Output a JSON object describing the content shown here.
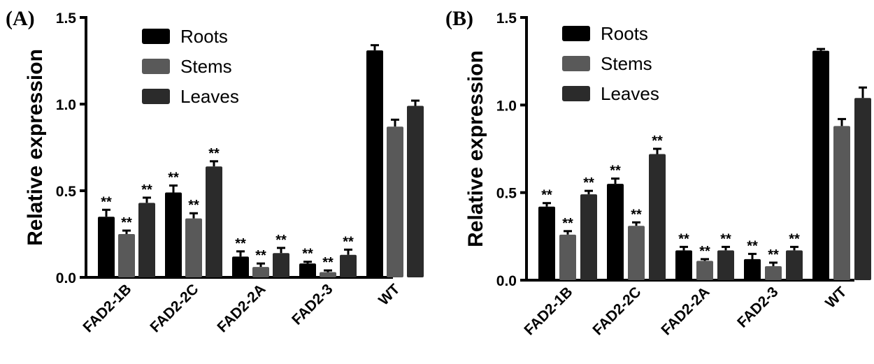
{
  "chart_data": [
    {
      "type": "bar",
      "panel_label": "(A)",
      "ylabel": "Relative expression",
      "xlabel": "",
      "ylim": [
        0,
        1.5
      ],
      "yticks": [
        "0.0",
        "0.5",
        "1.0",
        "1.5"
      ],
      "categories": [
        "FAD2-1B",
        "FAD2-2C",
        "FAD2-2A",
        "FAD2-3",
        "WT"
      ],
      "legend_position": "top-left",
      "series": [
        {
          "name": "Roots",
          "color": "#000000",
          "values": [
            0.35,
            0.49,
            0.12,
            0.08,
            1.31
          ],
          "errors": [
            0.04,
            0.04,
            0.03,
            0.01,
            0.03
          ],
          "significance": [
            "**",
            "**",
            "**",
            "**",
            ""
          ]
        },
        {
          "name": "Stems",
          "color": "#595959",
          "values": [
            0.25,
            0.34,
            0.06,
            0.03,
            0.87
          ],
          "errors": [
            0.02,
            0.03,
            0.02,
            0.01,
            0.04
          ],
          "significance": [
            "**",
            "**",
            "**",
            "**",
            ""
          ]
        },
        {
          "name": "Leaves",
          "color": "#2b2b2b",
          "values": [
            0.43,
            0.64,
            0.14,
            0.13,
            0.99
          ],
          "errors": [
            0.03,
            0.03,
            0.03,
            0.03,
            0.03
          ],
          "significance": [
            "**",
            "**",
            "**",
            "**",
            ""
          ]
        }
      ]
    },
    {
      "type": "bar",
      "panel_label": "(B)",
      "ylabel": "Relative expression",
      "xlabel": "",
      "ylim": [
        0,
        1.5
      ],
      "yticks": [
        "0.0",
        "0.5",
        "1.0",
        "1.5"
      ],
      "categories": [
        "FAD2-1B",
        "FAD2-2C",
        "FAD2-2A",
        "FAD2-3",
        "WT"
      ],
      "legend_position": "top-left",
      "series": [
        {
          "name": "Roots",
          "color": "#000000",
          "values": [
            0.42,
            0.55,
            0.17,
            0.12,
            1.31
          ],
          "errors": [
            0.02,
            0.03,
            0.02,
            0.03,
            0.01
          ],
          "significance": [
            "**",
            "**",
            "**",
            "**",
            ""
          ]
        },
        {
          "name": "Stems",
          "color": "#595959",
          "values": [
            0.26,
            0.31,
            0.11,
            0.08,
            0.88
          ],
          "errors": [
            0.02,
            0.02,
            0.01,
            0.02,
            0.04
          ],
          "significance": [
            "**",
            "**",
            "**",
            "**",
            ""
          ]
        },
        {
          "name": "Leaves",
          "color": "#2b2b2b",
          "values": [
            0.49,
            0.72,
            0.17,
            0.17,
            1.04
          ],
          "errors": [
            0.02,
            0.03,
            0.02,
            0.02,
            0.06
          ],
          "significance": [
            "**",
            "**",
            "**",
            "**",
            ""
          ]
        }
      ]
    }
  ]
}
